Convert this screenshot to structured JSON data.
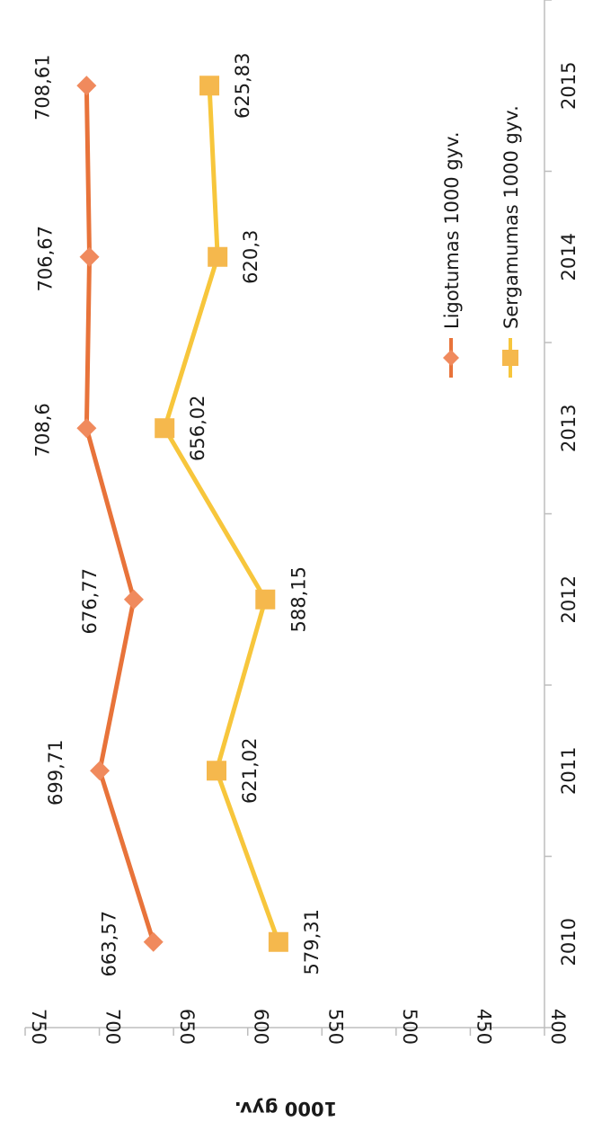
{
  "chart_data": {
    "type": "line",
    "orientation": "rotated 90 degrees clockwise",
    "title": "",
    "xlabel": "",
    "ylabel": "1000 gyv.",
    "categories": [
      "2010",
      "2011",
      "2012",
      "2013",
      "2014",
      "2015"
    ],
    "y_ticks": [
      "400",
      "450",
      "500",
      "550",
      "600",
      "650",
      "700",
      "750"
    ],
    "ylim": [
      400,
      750
    ],
    "grid": false,
    "legend_placement": "right",
    "series": [
      {
        "name": "Ligotumas 1000 gyv.",
        "color": "#E8733A",
        "marker": "diamond",
        "values": [
          663.57,
          699.71,
          676.77,
          708.6,
          706.67,
          708.61
        ],
        "labels": [
          "663,57",
          "699,71",
          "676,77",
          "708,6",
          "706,67",
          "708,61"
        ]
      },
      {
        "name": "Sergamumas 1000 gyv.",
        "color": "#F7C63C",
        "marker_color": "#F5B84D",
        "marker": "square",
        "values": [
          579.31,
          621.02,
          588.15,
          656.02,
          620.3,
          625.83
        ],
        "labels": [
          "579,31",
          "621,02",
          "588,15",
          "656,02",
          "620,3",
          "625,83"
        ]
      }
    ]
  }
}
